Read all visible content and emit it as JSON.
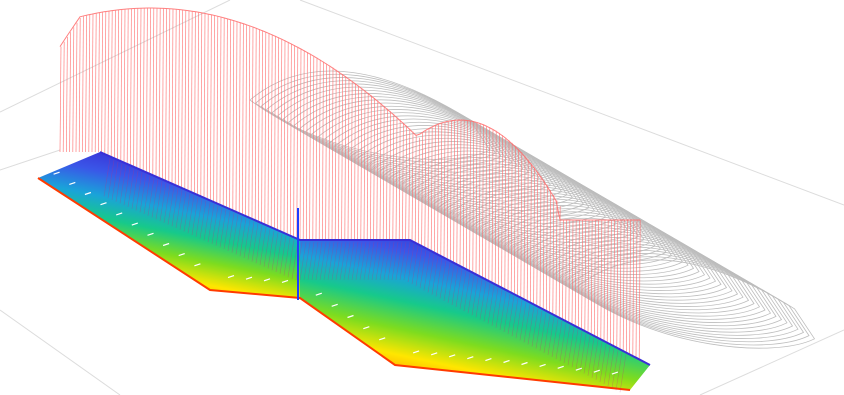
{
  "viewport": {
    "background": "#ffffff",
    "description_free": true
  },
  "colors": {
    "grid": "#d9d9d9",
    "outline_gray": "#bdbdbd",
    "profile_red": "#ff6b6b",
    "ramp": [
      "#ff3b00",
      "#ff9a00",
      "#ffe600",
      "#7ddc1f",
      "#17c98a",
      "#1aa3d9",
      "#3a57e8",
      "#3a2fd6"
    ],
    "marker": "#1f3cff",
    "tick_white": "#ffffff"
  },
  "icons": {
    "scene": "3d-terrain-icon"
  }
}
